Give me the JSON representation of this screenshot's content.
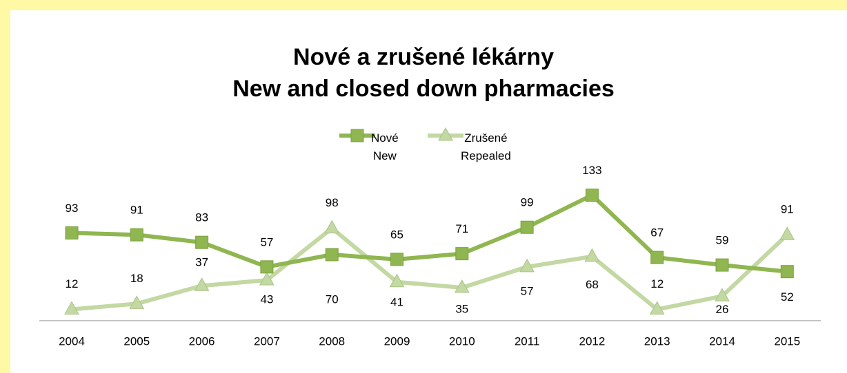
{
  "chart_data": {
    "type": "line",
    "title": "Nové a zrušené lékárny\nNew and closed down pharmacies",
    "categories": [
      "2004",
      "2005",
      "2006",
      "2007",
      "2008",
      "2009",
      "2010",
      "2011",
      "2012",
      "2013",
      "2014",
      "2015"
    ],
    "series": [
      {
        "name": "Nové\nNew",
        "color": "#8fb650",
        "marker": "square",
        "values": [
          93,
          91,
          83,
          57,
          70,
          65,
          71,
          99,
          133,
          67,
          59,
          52
        ]
      },
      {
        "name": "Zrušené\nRepealed",
        "color": "#c3d8a2",
        "marker": "triangle",
        "values": [
          12,
          18,
          37,
          43,
          98,
          41,
          35,
          57,
          68,
          12,
          26,
          91
        ]
      }
    ],
    "ylim": [
      0,
      140
    ]
  }
}
